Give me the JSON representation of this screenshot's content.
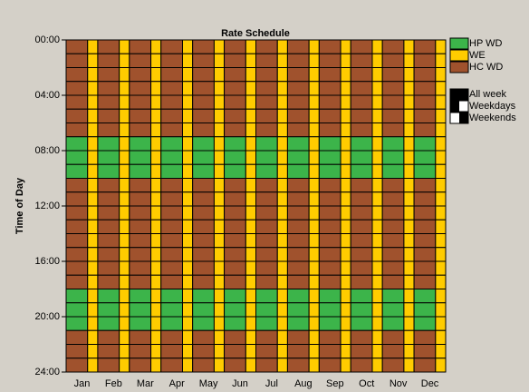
{
  "chart_data": {
    "type": "heatmap",
    "title": "Rate Schedule",
    "ylabel": "Time of Day",
    "categories": [
      "Jan",
      "Feb",
      "Mar",
      "Apr",
      "May",
      "Jun",
      "Jul",
      "Aug",
      "Sep",
      "Oct",
      "Nov",
      "Dec"
    ],
    "periods": [
      {
        "name": "HP WD",
        "color": "#3cb44a"
      },
      {
        "name": "WE",
        "color": "#ffcc00"
      },
      {
        "name": "HC WD",
        "color": "#a0522d"
      }
    ],
    "weekday_schedule": [
      2,
      2,
      2,
      2,
      2,
      2,
      2,
      0,
      0,
      0,
      2,
      2,
      2,
      2,
      2,
      2,
      2,
      2,
      0,
      0,
      0,
      2,
      2,
      2
    ],
    "weekend_schedule": [
      1,
      1,
      1,
      1,
      1,
      1,
      1,
      1,
      1,
      1,
      1,
      1,
      1,
      1,
      1,
      1,
      1,
      1,
      1,
      1,
      1,
      1,
      1,
      1
    ],
    "ylim": [
      0,
      24
    ],
    "yticks": [
      {
        "value": 0,
        "label": "00:00"
      },
      {
        "value": 4,
        "label": "04:00"
      },
      {
        "value": 8,
        "label": "08:00"
      },
      {
        "value": 12,
        "label": "12:00"
      },
      {
        "value": 16,
        "label": "16:00"
      },
      {
        "value": 20,
        "label": "20:00"
      },
      {
        "value": 24,
        "label": "24:00"
      }
    ],
    "day_filters": [
      "All week",
      "Weekdays",
      "Weekends"
    ]
  }
}
